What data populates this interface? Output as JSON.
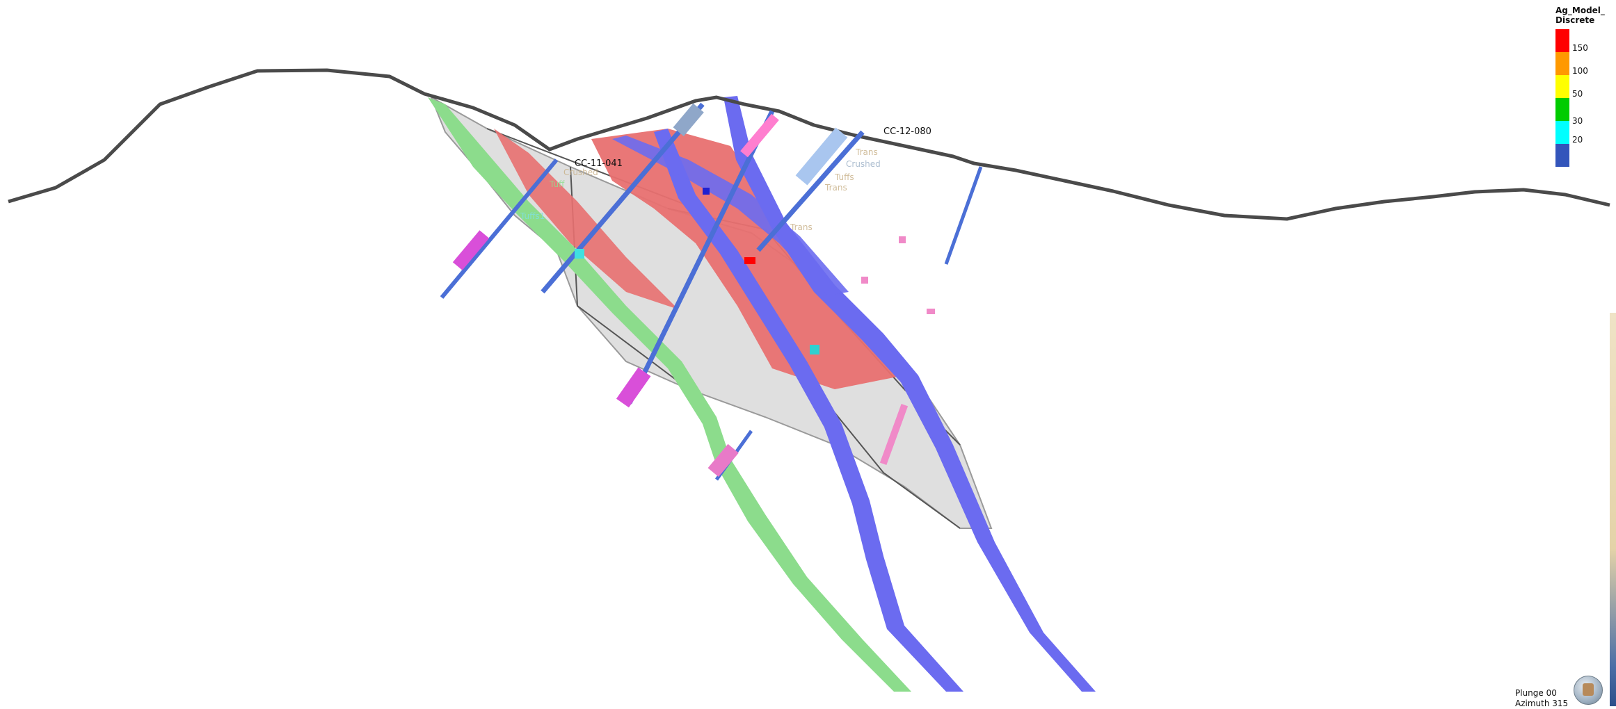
{
  "viewport": {
    "background": "#ffffff",
    "drillholes": [
      {
        "id": "CC-11-041"
      },
      {
        "id": "CC-12-080"
      }
    ],
    "faint_labels": [
      {
        "text": "Trans",
        "color": "#c9b28a"
      },
      {
        "text": "Crushed",
        "color": "#9fb3c8"
      },
      {
        "text": "Tuffs",
        "color": "#c9b28a"
      },
      {
        "text": "Trans",
        "color": "#c9b28a"
      },
      {
        "text": "Trans",
        "color": "#c9b28a"
      },
      {
        "text": "Crushed",
        "color": "#c9b28a"
      },
      {
        "text": "Tuff",
        "color": "#8fe08f"
      },
      {
        "text": "Tuffs1",
        "color": "#7fe0e0"
      }
    ],
    "layer_colors": {
      "topography": "#4a4a4a",
      "red_shell": "#e87070",
      "grey_shell": "#d8d8d8",
      "blue_vein": "#6b6bf0",
      "green_vein": "#8cdc8c"
    }
  },
  "legend": {
    "title": "Ag_Model_\nDiscrete",
    "entries": [
      {
        "label": "150",
        "color": "#ff0000"
      },
      {
        "label": "100",
        "color": "#ff9900"
      },
      {
        "label": "50",
        "color": "#ffff00"
      },
      {
        "label": "30",
        "color": "#00cc00"
      },
      {
        "label": "20",
        "color": "#00ffff"
      },
      {
        "label": "",
        "color": "#3355bb"
      }
    ]
  },
  "view_info": {
    "plunge": "Plunge 00",
    "azimuth": "Azimuth 315"
  },
  "view_cube": {
    "icon": "view-orientation-cube-icon"
  }
}
